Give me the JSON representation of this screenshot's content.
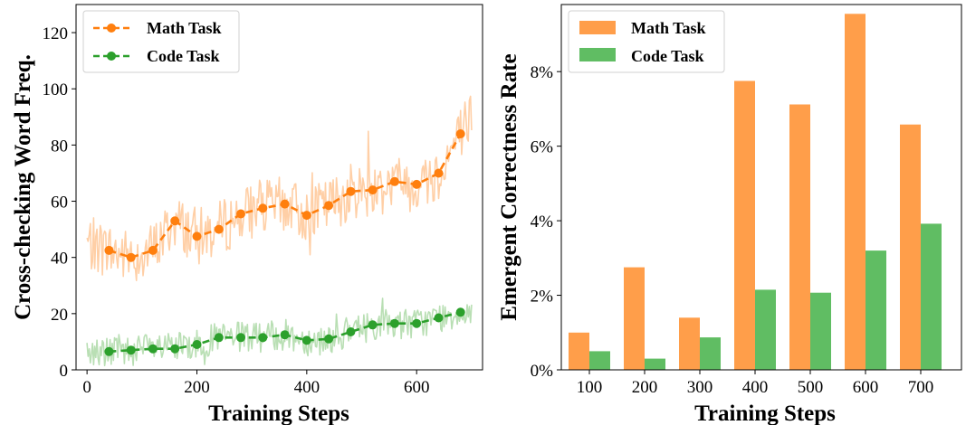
{
  "chart_data": [
    {
      "type": "line",
      "xlabel": "Training Steps",
      "ylabel": "Cross-checking Word Freq.",
      "xlim": [
        -20,
        720
      ],
      "ylim": [
        0,
        130
      ],
      "xticks": [
        0,
        200,
        400,
        600
      ],
      "yticks": [
        0,
        20,
        40,
        60,
        80,
        100,
        120
      ],
      "legend": "top-left",
      "series": [
        {
          "name": "Math Task",
          "color": "#ff7f0e",
          "raw_color": "#ffcfa6",
          "x": [
            40,
            80,
            120,
            160,
            200,
            240,
            280,
            320,
            360,
            400,
            440,
            480,
            520,
            560,
            600,
            640,
            680
          ],
          "y": [
            42.5,
            40,
            42.5,
            53,
            47.5,
            50,
            55.5,
            57.5,
            59,
            55,
            58.5,
            63.5,
            64,
            67,
            66,
            70,
            84
          ]
        },
        {
          "name": "Code Task",
          "color": "#2ca02c",
          "raw_color": "#b9dfb4",
          "x": [
            40,
            80,
            120,
            160,
            200,
            240,
            280,
            320,
            360,
            400,
            440,
            480,
            520,
            560,
            600,
            640,
            680
          ],
          "y": [
            6.5,
            7,
            7.5,
            7.5,
            9,
            11.5,
            11.5,
            11.5,
            12.5,
            10.5,
            11,
            13.5,
            16,
            16.5,
            16.5,
            18.5,
            20.5
          ]
        }
      ]
    },
    {
      "type": "bar",
      "xlabel": "Training Steps",
      "ylabel": "Emergent Correctness Rate",
      "categories": [
        "100",
        "200",
        "300",
        "400",
        "500",
        "600",
        "700"
      ],
      "ylim": [
        0,
        9.8
      ],
      "yticks": [
        0,
        2,
        4,
        6,
        8
      ],
      "ytick_labels": [
        "0%",
        "2%",
        "4%",
        "6%",
        "8%"
      ],
      "legend": "top-left",
      "series": [
        {
          "name": "Math Task",
          "color": "#ff9e4a",
          "values": [
            1.0,
            2.75,
            1.4,
            7.75,
            7.12,
            9.55,
            6.58
          ]
        },
        {
          "name": "Code Task",
          "color": "#60bd63",
          "values": [
            0.5,
            0.3,
            0.87,
            2.15,
            2.07,
            3.2,
            3.92
          ]
        }
      ]
    }
  ]
}
